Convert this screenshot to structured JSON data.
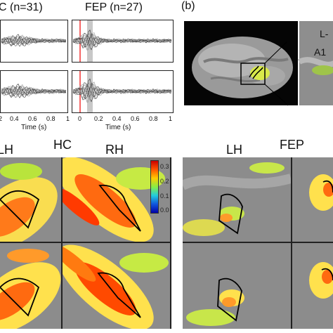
{
  "panel_a": {
    "hc_title": "C (n=31)",
    "fep_title": "FEP (n=27)",
    "x_ticks": [
      "0.4",
      "0.6",
      "0.8",
      "1"
    ],
    "fep_x_ticks": [
      "0",
      "0.2",
      "0.4",
      "0.6",
      "0.8",
      "1"
    ],
    "xlabel": "Time (s)",
    "fep_xlabel": "Time (s)"
  },
  "panel_b": {
    "label": "(b)",
    "inset_labels": [
      "L-",
      "A1"
    ]
  },
  "panel_c": {
    "hc_group": "HC",
    "hc_left": "LH",
    "hc_right": "RH",
    "fep_group": "FEP",
    "fep_left": "LH",
    "colorbar_ticks": [
      "0.3",
      "0.2",
      "0.1",
      "0.0"
    ],
    "colorbar_colors": [
      "#cc0000",
      "#ff5500",
      "#ffcc00",
      "#88ee44",
      "#22ccdd",
      "#1155dd",
      "#0000aa"
    ]
  }
}
